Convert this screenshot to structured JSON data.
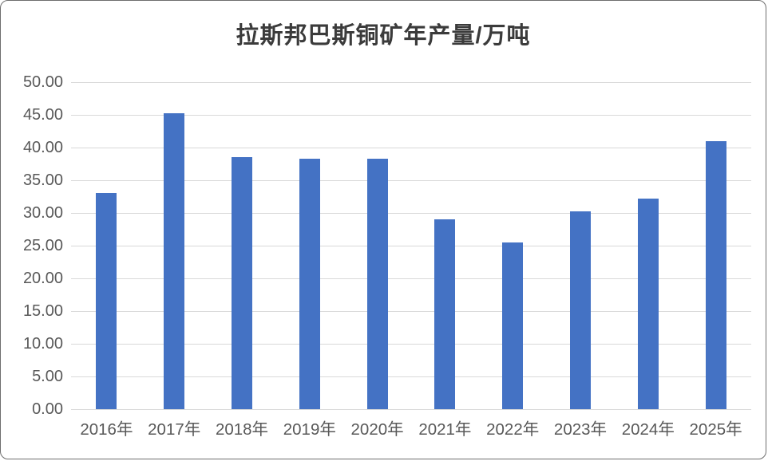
{
  "chart_data": {
    "type": "bar",
    "title": "拉斯邦巴斯铜矿年产量/万吨",
    "unit": "万吨",
    "categories": [
      "2016年",
      "2017年",
      "2018年",
      "2019年",
      "2020年",
      "2021年",
      "2022年",
      "2023年",
      "2024年",
      "2025年"
    ],
    "values": [
      33.0,
      45.3,
      38.5,
      38.3,
      38.3,
      29.0,
      25.5,
      30.3,
      32.2,
      41.0
    ],
    "ylim": [
      0,
      50
    ],
    "ytick_step": 5,
    "ytick_labels": [
      "0.00",
      "5.00",
      "10.00",
      "15.00",
      "20.00",
      "25.00",
      "30.00",
      "35.00",
      "40.00",
      "45.00",
      "50.00"
    ],
    "grid": true,
    "legend": "none",
    "xlabel": "",
    "ylabel": "",
    "colors": {
      "bar": "#4472c4",
      "gridline": "#d9d9d9",
      "axis_text": "#595959",
      "title_text": "#3b3b3b",
      "frame_border": "#6e6e6e"
    }
  }
}
